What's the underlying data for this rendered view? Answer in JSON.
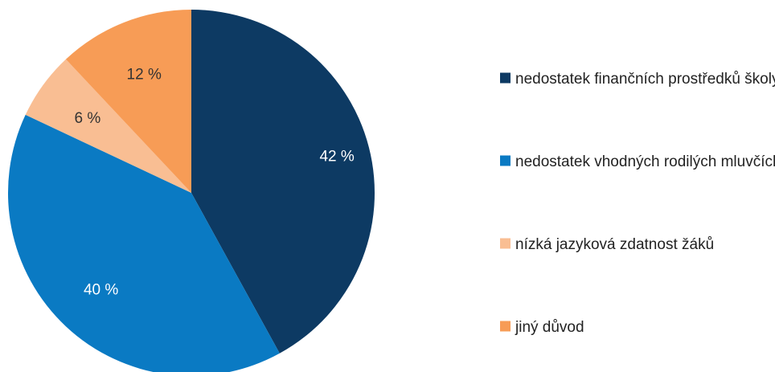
{
  "chart_data": {
    "type": "pie",
    "title": "",
    "categories": [
      "nedostatek finančních prostředků školy",
      "nedostatek vhodných rodilých mluvčích",
      "nízká jazyková zdatnost žáků",
      "jiný důvod"
    ],
    "values": [
      42,
      40,
      6,
      12
    ],
    "data_labels": [
      "42 %",
      "40 %",
      "6 %",
      "12 %"
    ],
    "colors": [
      "#0d3a63",
      "#0a7ac3",
      "#f9be93",
      "#f79c56"
    ],
    "label_colors": [
      "#ffffff",
      "#ffffff",
      "#333333",
      "#333333"
    ],
    "start": "12 o'clock",
    "direction": "clockwise",
    "legend_position": "right"
  }
}
